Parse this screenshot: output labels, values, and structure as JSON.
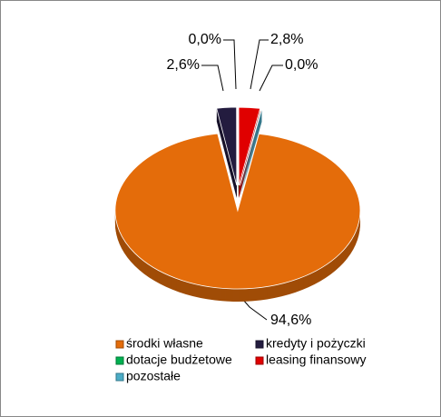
{
  "chart_data": {
    "type": "pie",
    "categories": [
      "środki własne",
      "kredyty i pożyczki",
      "dotacje budżetowe",
      "leasing finansowy",
      "pozostałe"
    ],
    "values": [
      94.6,
      2.6,
      0.0,
      2.8,
      0.0
    ],
    "value_labels": [
      "94,6%",
      "2,6%",
      "0,0%",
      "2,8%",
      "0,0%"
    ],
    "colors": [
      "#E46C0A",
      "#231C3F",
      "#00B050",
      "#E00000",
      "#4BACC6"
    ],
    "legend": "bottom"
  }
}
